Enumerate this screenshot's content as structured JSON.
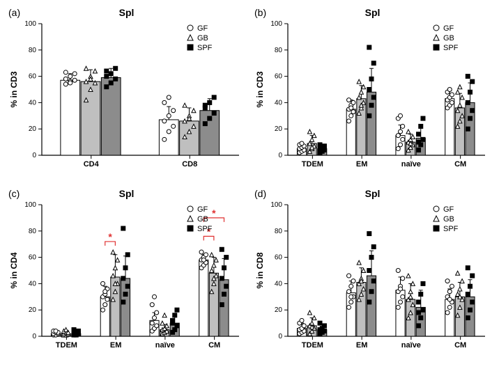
{
  "global": {
    "title": "Spl",
    "ylim": [
      0,
      100
    ],
    "ytick_step": 20,
    "axis_color": "#000000",
    "background": "#ffffff",
    "groups": [
      "GF",
      "GB",
      "SPF"
    ],
    "bar_colors": [
      "#ffffff",
      "#bfbfbf",
      "#8c8c8c"
    ],
    "marker_shapes": [
      "circle",
      "triangle",
      "square"
    ],
    "marker_fills": [
      "#ffffff",
      "#ffffff",
      "#000000"
    ],
    "marker_stroke": "#000000",
    "sig_color": "#e03030",
    "title_fontsize": 14,
    "label_fontsize": 12,
    "tick_fontsize": 10
  },
  "panels": {
    "a": {
      "label": "(a)",
      "ylabel": "% in CD3",
      "categories": [
        "CD4",
        "CD8"
      ],
      "bars": {
        "CD4": {
          "mean": [
            57,
            56,
            59
          ],
          "sd": [
            5,
            9,
            7
          ]
        },
        "CD8": {
          "mean": [
            27,
            26,
            34
          ],
          "sd": [
            10,
            10,
            9
          ]
        }
      },
      "points": {
        "CD4": {
          "GF": [
            54,
            56,
            57,
            58,
            60,
            62,
            63,
            55
          ],
          "GB": [
            42,
            50,
            55,
            56,
            60,
            64,
            66,
            58
          ],
          "SPF": [
            52,
            55,
            58,
            60,
            62,
            66,
            64
          ]
        },
        "CD8": {
          "GF": [
            12,
            18,
            22,
            26,
            30,
            34,
            40,
            44
          ],
          "GB": [
            14,
            18,
            22,
            26,
            30,
            34,
            38,
            28
          ],
          "SPF": [
            24,
            28,
            32,
            36,
            40,
            44,
            38
          ]
        }
      },
      "sig": []
    },
    "b": {
      "label": "(b)",
      "ylabel": "% in CD3",
      "categories": [
        "TDEM",
        "EM",
        "naïve",
        "CM"
      ],
      "bars": {
        "TDEM": {
          "mean": [
            5,
            9,
            5
          ],
          "sd": [
            3,
            6,
            3
          ]
        },
        "EM": {
          "mean": [
            35,
            43,
            48
          ],
          "sd": [
            7,
            10,
            18
          ]
        },
        "naïve": {
          "mean": [
            15,
            10,
            13
          ],
          "sd": [
            8,
            6,
            10
          ]
        },
        "CM": {
          "mean": [
            43,
            36,
            40
          ],
          "sd": [
            6,
            11,
            15
          ]
        }
      },
      "points": {
        "TDEM": {
          "GF": [
            2,
            3,
            4,
            5,
            6,
            7,
            8,
            9
          ],
          "GB": [
            3,
            5,
            7,
            9,
            12,
            15,
            18,
            6
          ],
          "SPF": [
            2,
            3,
            4,
            5,
            6,
            7,
            8
          ]
        },
        "EM": {
          "GF": [
            26,
            30,
            33,
            35,
            38,
            40,
            42,
            36
          ],
          "GB": [
            32,
            36,
            40,
            44,
            48,
            52,
            56,
            38
          ],
          "SPF": [
            30,
            38,
            44,
            50,
            58,
            70,
            82
          ]
        },
        "naïve": {
          "GF": [
            5,
            8,
            12,
            15,
            18,
            22,
            28,
            30
          ],
          "GB": [
            4,
            6,
            8,
            10,
            12,
            14,
            18,
            9
          ],
          "SPF": [
            4,
            8,
            12,
            16,
            22,
            28,
            10
          ]
        },
        "CM": {
          "GF": [
            36,
            38,
            40,
            42,
            44,
            46,
            48,
            50
          ],
          "GB": [
            22,
            26,
            30,
            34,
            38,
            44,
            48,
            52
          ],
          "SPF": [
            20,
            28,
            34,
            40,
            48,
            56,
            60
          ]
        }
      },
      "sig": []
    },
    "c": {
      "label": "(c)",
      "ylabel": "% in CD4",
      "categories": [
        "TDEM",
        "EM",
        "naïve",
        "CM"
      ],
      "bars": {
        "TDEM": {
          "mean": [
            2,
            2,
            2
          ],
          "sd": [
            2,
            2,
            2
          ]
        },
        "EM": {
          "mean": [
            30,
            45,
            44
          ],
          "sd": [
            8,
            17,
            17
          ]
        },
        "naïve": {
          "mean": [
            12,
            5,
            10
          ],
          "sd": [
            6,
            4,
            7
          ]
        },
        "CM": {
          "mean": [
            58,
            48,
            43
          ],
          "sd": [
            4,
            12,
            16
          ]
        }
      },
      "points": {
        "TDEM": {
          "GF": [
            1,
            1,
            2,
            2,
            3,
            3,
            4,
            4
          ],
          "GB": [
            1,
            1,
            2,
            2,
            3,
            3,
            4,
            5
          ],
          "SPF": [
            1,
            1,
            2,
            2,
            3,
            4,
            5
          ]
        },
        "EM": {
          "GF": [
            20,
            24,
            28,
            30,
            32,
            36,
            40,
            34
          ],
          "GB": [
            28,
            34,
            40,
            46,
            52,
            58,
            64,
            40
          ],
          "SPF": [
            26,
            32,
            38,
            44,
            52,
            62,
            82
          ]
        },
        "naïve": {
          "GF": [
            4,
            6,
            8,
            10,
            14,
            18,
            24,
            30
          ],
          "GB": [
            2,
            3,
            4,
            5,
            6,
            8,
            10,
            16
          ],
          "SPF": [
            3,
            5,
            8,
            12,
            16,
            20,
            10
          ]
        },
        "CM": {
          "GF": [
            52,
            54,
            56,
            58,
            60,
            62,
            64,
            58
          ],
          "GB": [
            34,
            40,
            46,
            50,
            54,
            58,
            62,
            44
          ],
          "SPF": [
            24,
            32,
            38,
            44,
            52,
            60,
            66
          ]
        }
      },
      "sig": [
        {
          "cat": "EM",
          "i": 0,
          "j": 1,
          "y": 72,
          "label": "*"
        },
        {
          "cat": "CM",
          "i": 0,
          "j": 1,
          "y": 76,
          "label": "*"
        },
        {
          "cat": "CM",
          "i": 0,
          "j": 2,
          "y": 90,
          "label": "*"
        }
      ]
    },
    "d": {
      "label": "(d)",
      "ylabel": "% in CD8",
      "categories": [
        "TDEM",
        "EM",
        "naïve",
        "CM"
      ],
      "bars": {
        "TDEM": {
          "mean": [
            6,
            8,
            5
          ],
          "sd": [
            4,
            6,
            4
          ]
        },
        "EM": {
          "mean": [
            33,
            41,
            46
          ],
          "sd": [
            9,
            11,
            19
          ]
        },
        "naïve": {
          "mean": [
            35,
            28,
            22
          ],
          "sd": [
            10,
            12,
            13
          ]
        },
        "CM": {
          "mean": [
            28,
            30,
            30
          ],
          "sd": [
            8,
            11,
            13
          ]
        }
      },
      "points": {
        "TDEM": {
          "GF": [
            2,
            3,
            4,
            5,
            6,
            8,
            10,
            12
          ],
          "GB": [
            2,
            4,
            6,
            8,
            10,
            14,
            18,
            7
          ],
          "SPF": [
            2,
            3,
            4,
            5,
            6,
            8,
            10
          ]
        },
        "EM": {
          "GF": [
            22,
            26,
            30,
            34,
            38,
            42,
            46,
            30
          ],
          "GB": [
            28,
            32,
            36,
            40,
            44,
            50,
            56,
            42
          ],
          "SPF": [
            26,
            34,
            42,
            50,
            60,
            68,
            78
          ]
        },
        "naïve": {
          "GF": [
            22,
            26,
            30,
            34,
            38,
            44,
            50,
            36
          ],
          "GB": [
            14,
            18,
            24,
            28,
            34,
            40,
            46,
            30
          ],
          "SPF": [
            8,
            14,
            20,
            26,
            32,
            40,
            18
          ]
        },
        "CM": {
          "GF": [
            18,
            22,
            26,
            30,
            34,
            38,
            42,
            28
          ],
          "GB": [
            16,
            22,
            28,
            32,
            36,
            42,
            48,
            30
          ],
          "SPF": [
            14,
            20,
            26,
            32,
            38,
            46,
            52
          ]
        }
      },
      "sig": []
    }
  }
}
